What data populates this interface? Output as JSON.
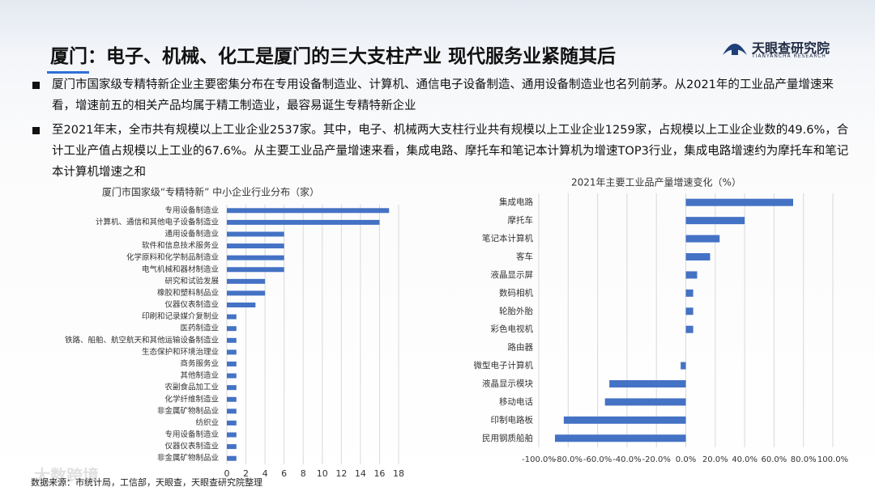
{
  "header": {
    "title": "厦门：电子、机械、化工是厦门的三大支柱产业 现代服务业紧随其后",
    "logo": "天眼查研究院",
    "logo_sub": "TIANYANCHA RESEARCH"
  },
  "bullets": [
    "厦门市国家级专精特新企业主要密集分布在专用设备制造业、计算机、通信电子设备制造、通用设备制造业也名列前茅。从2021年的工业品产量增速来看，增速前五的相关产品均属于精工制造业，最容易诞生专精特新企业",
    "至2021年末，全市共有规模以上工业企业2537家。其中，电子、机械两大支柱行业共有规模以上工业企业1259家，占规模以上工业企业数的49.6%，合计工业产值占规模以上工业的67.6%。从主要工业品产量增速来看，集成电路、摩托车和笔记本计算机为增速TOP3行业，集成电路增速约为摩托车和笔记本计算机增速之和"
  ],
  "source": "数据来源：市统计局，工信部，天眼查，天眼查研究院整理",
  "watermark": "大数跨境",
  "chart_data": [
    {
      "type": "bar",
      "orientation": "horizontal",
      "title": "厦门市国家级“专精特新” 中小企业行业分布（家）",
      "categories": [
        "专用设备制造业",
        "计算机、通信和其他电子设备制造业",
        "通用设备制造业",
        "软件和信息技术服务业",
        "化学原料和化学制品制造业",
        "电气机械和器材制造业",
        "研究和试验发展",
        "橡胶和塑料制品业",
        "仪器仪表制造业",
        "印刷和记录媒介复制业",
        "医药制造业",
        "铁路、船舶、航空航天和其他运输设备制造业",
        "生态保护和环境治理业",
        "商务服务业",
        "其他制造业",
        "农副食品加工业",
        "化学纤维制造业",
        "非金属矿物制品业",
        "纺织业",
        "专用设备制造业",
        "仪器仪表制造业",
        "非金属矿物制品业"
      ],
      "values": [
        17,
        16,
        6,
        6,
        6,
        6,
        4,
        4,
        3,
        1,
        1,
        1,
        1,
        1,
        1,
        1,
        1,
        1,
        1,
        1,
        1,
        1
      ],
      "color": "#4472c4",
      "xlim": [
        0,
        18
      ],
      "xticks": [
        0,
        2,
        4,
        6,
        8,
        10,
        12,
        14,
        16,
        18
      ],
      "grid": true
    },
    {
      "type": "bar",
      "orientation": "horizontal",
      "title": "2021年主要工业品产量增速变化（%）",
      "categories": [
        "集成电路",
        "摩托车",
        "笔记本计算机",
        "客车",
        "液晶显示屏",
        "数码相机",
        "轮胎外胎",
        "彩色电视机",
        "路由器",
        "微型电子计算机",
        "液晶显示模块",
        "移动电话",
        "印制电路板",
        "民用钢质船舶"
      ],
      "values": [
        73,
        40,
        23,
        16.5,
        7.7,
        5,
        5,
        5,
        0,
        -3.5,
        -52,
        -55,
        -83,
        -89
      ],
      "color": "#4472c4",
      "xlim": [
        -100,
        100
      ],
      "xticks": [
        {
          "value": -100,
          "label": "-100.0%"
        },
        {
          "value": -80,
          "label": "-80.0%"
        },
        {
          "value": -60,
          "label": "-60.0%"
        },
        {
          "value": -40,
          "label": "-40.0%"
        },
        {
          "value": -20,
          "label": "-20.0%"
        },
        {
          "value": 0,
          "label": "0.0%"
        },
        {
          "value": 20,
          "label": "20.0%"
        },
        {
          "value": 40,
          "label": "40.0%"
        },
        {
          "value": 60,
          "label": "60.0%"
        },
        {
          "value": 80,
          "label": "80.0%"
        },
        {
          "value": 100,
          "label": "100.0%"
        }
      ],
      "grid": true
    }
  ]
}
